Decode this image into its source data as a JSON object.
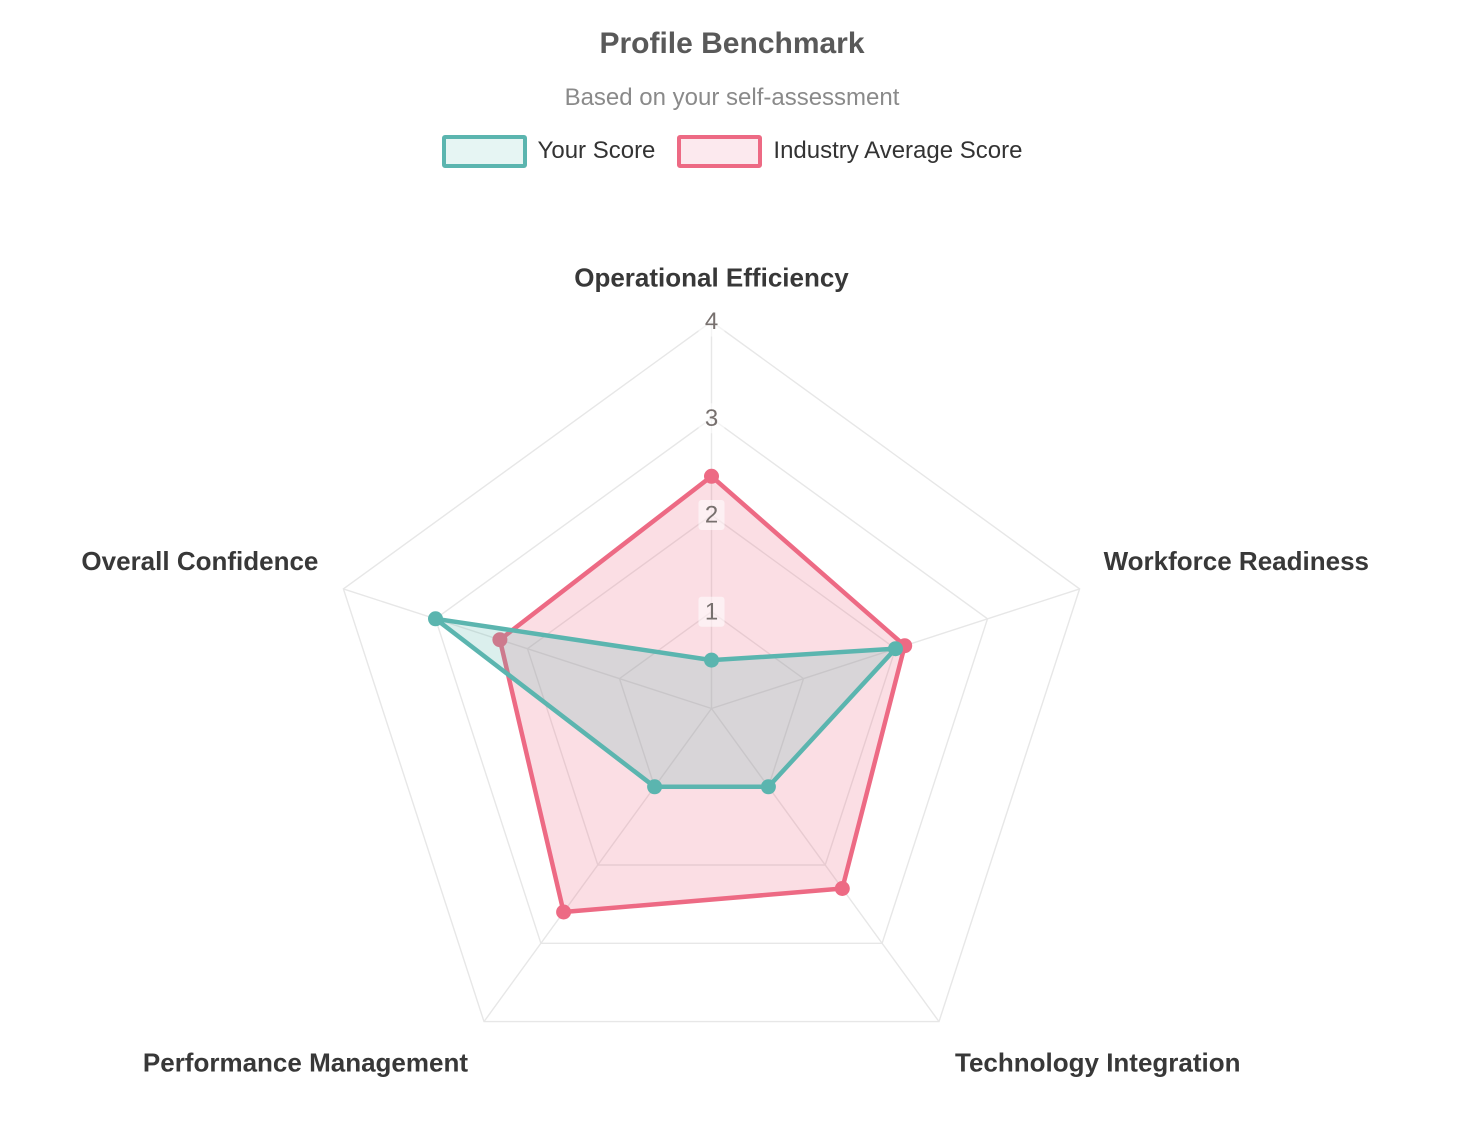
{
  "chart_data": {
    "type": "radar",
    "title": "Profile Benchmark",
    "subtitle": "Based on your self-assessment",
    "categories": [
      "Operational Efficiency",
      "Workforce Readiness",
      "Technology Integration",
      "Performance Management",
      "Overall Confidence"
    ],
    "series": [
      {
        "name": "Your Score",
        "values": [
          0.5,
          2.0,
          1.0,
          1.0,
          3.0
        ],
        "color": "#5BB5AF",
        "fill_opacity": 0.22,
        "legend_fill": "#E6F5F3"
      },
      {
        "name": "Industry Average Score",
        "values": [
          2.4,
          2.1,
          2.3,
          2.6,
          2.3
        ],
        "color": "#ED6A84",
        "fill_opacity": 0.22,
        "legend_fill": "#FCE9EE"
      }
    ],
    "scale": {
      "min": 0,
      "max": 4,
      "ticks": [
        1,
        2,
        3,
        4
      ]
    },
    "grid": {
      "shape": "pentagon",
      "color": "#E7E7E7",
      "show": true
    },
    "legend_position": "top",
    "tick_axis": "Operational Efficiency"
  }
}
